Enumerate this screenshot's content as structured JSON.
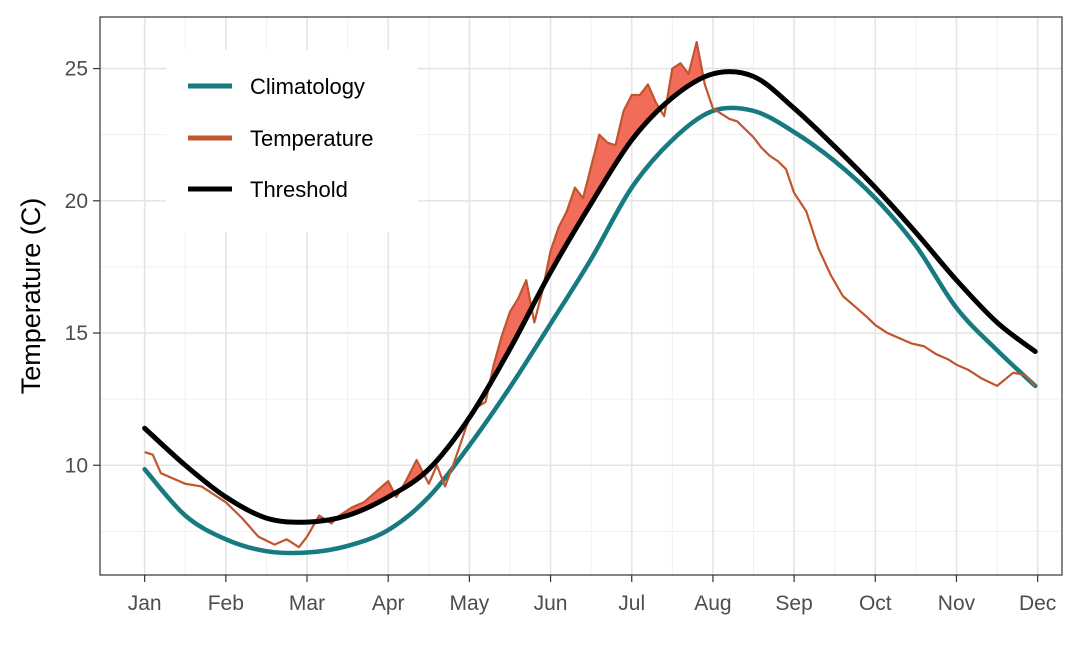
{
  "chart_data": {
    "type": "line",
    "title": "",
    "xlabel": "",
    "ylabel": "Temperature (C)",
    "x_ticks": [
      "Jan",
      "Feb",
      "Mar",
      "Apr",
      "May",
      "Jun",
      "Jul",
      "Aug",
      "Sep",
      "Oct",
      "Nov",
      "Dec"
    ],
    "y_ticks": [
      10,
      15,
      20,
      25
    ],
    "xlim": [
      -0.55,
      11.3
    ],
    "ylim": [
      5.85,
      26.95
    ],
    "grid": true,
    "legend_position": "top-left",
    "shaded_area": "temperature above threshold",
    "series": [
      {
        "name": "Climatology",
        "color": "#167A80",
        "x": [
          0.0,
          0.5,
          1.0,
          1.5,
          2.0,
          2.5,
          3.0,
          3.5,
          4.0,
          4.5,
          5.0,
          5.5,
          6.0,
          6.5,
          7.0,
          7.5,
          8.0,
          8.5,
          9.0,
          9.5,
          10.0,
          10.5,
          10.97
        ],
        "y": [
          9.85,
          8.1,
          7.2,
          6.75,
          6.7,
          6.95,
          7.55,
          8.8,
          10.75,
          12.95,
          15.35,
          17.8,
          20.5,
          22.3,
          23.4,
          23.4,
          22.6,
          21.5,
          20.1,
          18.3,
          15.95,
          14.35,
          13.0
        ]
      },
      {
        "name": "Temperature",
        "color": "#C0552E",
        "x": [
          0.0,
          0.1,
          0.2,
          0.35,
          0.5,
          0.7,
          0.9,
          1.0,
          1.2,
          1.4,
          1.6,
          1.75,
          1.9,
          2.0,
          2.15,
          2.3,
          2.4,
          2.55,
          2.7,
          2.85,
          3.0,
          3.1,
          3.2,
          3.35,
          3.5,
          3.6,
          3.7,
          3.8,
          3.9,
          4.0,
          4.1,
          4.2,
          4.3,
          4.4,
          4.5,
          4.6,
          4.7,
          4.8,
          4.9,
          5.0,
          5.1,
          5.2,
          5.3,
          5.4,
          5.5,
          5.6,
          5.7,
          5.8,
          5.9,
          6.0,
          6.1,
          6.2,
          6.3,
          6.4,
          6.5,
          6.6,
          6.7,
          6.8,
          6.9,
          7.0,
          7.1,
          7.2,
          7.3,
          7.4,
          7.5,
          7.6,
          7.7,
          7.8,
          7.9,
          8.0,
          8.15,
          8.3,
          8.45,
          8.6,
          8.75,
          8.9,
          9.0,
          9.15,
          9.3,
          9.45,
          9.6,
          9.75,
          9.9,
          10.0,
          10.15,
          10.3,
          10.5,
          10.7,
          10.85,
          10.97
        ],
        "y": [
          10.5,
          10.4,
          9.7,
          9.5,
          9.3,
          9.2,
          8.8,
          8.6,
          8.0,
          7.3,
          7.0,
          7.2,
          6.9,
          7.3,
          8.1,
          7.8,
          8.1,
          8.4,
          8.6,
          9.0,
          9.4,
          8.8,
          9.3,
          10.2,
          9.3,
          10.0,
          9.2,
          10.0,
          10.9,
          11.8,
          12.2,
          12.4,
          13.8,
          14.9,
          15.8,
          16.3,
          17.0,
          15.4,
          16.6,
          18.1,
          19.0,
          19.6,
          20.5,
          20.1,
          21.3,
          22.5,
          22.2,
          22.1,
          23.4,
          24.0,
          24.0,
          24.4,
          23.7,
          23.2,
          25.0,
          25.2,
          24.8,
          26.0,
          24.4,
          23.5,
          23.3,
          23.1,
          23.0,
          22.7,
          22.4,
          22.0,
          21.7,
          21.5,
          21.2,
          20.3,
          19.6,
          18.2,
          17.2,
          16.4,
          16.0,
          15.6,
          15.3,
          15.0,
          14.8,
          14.6,
          14.5,
          14.2,
          14.0,
          13.8,
          13.6,
          13.3,
          13.0,
          13.5,
          13.4,
          13.0
        ]
      },
      {
        "name": "Threshold",
        "color": "#000000",
        "x": [
          0.0,
          0.5,
          1.0,
          1.5,
          2.0,
          2.5,
          3.0,
          3.5,
          4.0,
          4.5,
          5.0,
          5.5,
          6.0,
          6.5,
          7.0,
          7.5,
          8.0,
          8.5,
          9.0,
          9.5,
          10.0,
          10.5,
          10.97
        ],
        "y": [
          11.4,
          10.0,
          8.8,
          8.0,
          7.85,
          8.1,
          8.8,
          9.85,
          11.8,
          14.4,
          17.3,
          19.9,
          22.3,
          23.9,
          24.8,
          24.7,
          23.5,
          22.05,
          20.5,
          18.8,
          17.0,
          15.4,
          14.3
        ]
      }
    ],
    "legend": [
      {
        "label": "Climatology",
        "color": "#167A80"
      },
      {
        "label": "Temperature",
        "color": "#C0552E"
      },
      {
        "label": "Threshold",
        "color": "#000000"
      }
    ],
    "fill_color": "#F26C5B"
  }
}
